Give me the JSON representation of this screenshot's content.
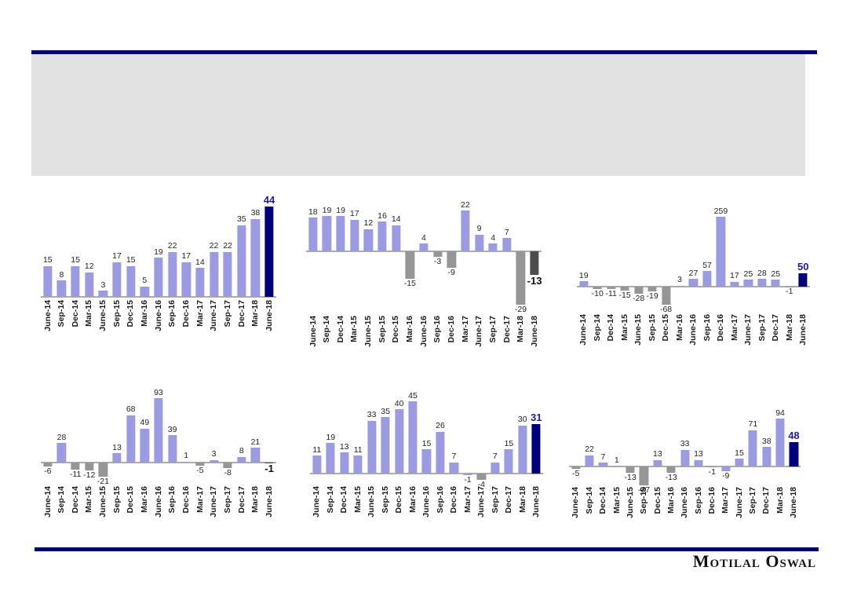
{
  "page": {
    "brand": "Motilal Oswal",
    "colors": {
      "bar_light": "#9B9BE4",
      "bar_navy": "#00007F",
      "bar_gray": "#969696",
      "bar_darkgray": "#4D4D4D",
      "accent_rule": "#00007F",
      "header_band": "#E2E2E2",
      "axis_line": "#ACACAC",
      "label_default": "#242424",
      "label_highlight_navy": "#1C1CA8",
      "label_highlight_black": "#101010"
    }
  },
  "header": {
    "band_color": "#E2E2E2",
    "title_text": ""
  },
  "footer": {
    "logo_text": "Motilal Oswal"
  },
  "chart_data": [
    {
      "type": "bar",
      "name": "top-left",
      "title": "",
      "xlabel": "",
      "ylabel": "",
      "ylim": [
        0,
        44
      ],
      "grid": false,
      "legend": false,
      "categories": [
        "June-14",
        "Sep-14",
        "Dec-14",
        "Mar-15",
        "June-15",
        "Sep-15",
        "Dec-15",
        "Mar-16",
        "June-16",
        "Sep-16",
        "Dec-16",
        "Mar-17",
        "June-17",
        "Sep-17",
        "Dec-17",
        "Mar-18",
        "June-18"
      ],
      "values": [
        15,
        8,
        15,
        12,
        3,
        17,
        15,
        5,
        19,
        22,
        17,
        14,
        22,
        22,
        35,
        38,
        44
      ],
      "bar_styles": [
        "light",
        "light",
        "light",
        "light",
        "light",
        "light",
        "light",
        "light",
        "light",
        "light",
        "light",
        "light",
        "light",
        "light",
        "light",
        "light",
        "navy"
      ],
      "highlight_index": 16,
      "highlight_label": "44",
      "highlight_label_color": "navy"
    },
    {
      "type": "bar",
      "name": "top-middle",
      "title": "",
      "xlabel": "",
      "ylabel": "",
      "ylim": [
        -29,
        22
      ],
      "grid": false,
      "legend": false,
      "categories": [
        "June-14",
        "Sep-14",
        "Dec-14",
        "Mar-15",
        "June-15",
        "Sep-15",
        "Dec-15",
        "Mar-16",
        "June-16",
        "Sep-16",
        "Dec-16",
        "Mar-17",
        "June-17",
        "Sep-17",
        "Dec-17",
        "Mar-18",
        "June-18"
      ],
      "values": [
        18,
        19,
        19,
        17,
        12,
        16,
        14,
        -15,
        4,
        -3,
        -9,
        22,
        9,
        4,
        7,
        -29,
        -13
      ],
      "bar_styles": [
        "light",
        "light",
        "light",
        "light",
        "light",
        "light",
        "light",
        "gray",
        "light",
        "gray",
        "gray",
        "light",
        "light",
        "light",
        "light",
        "gray",
        "darkgray"
      ],
      "highlight_index": 16,
      "highlight_label": "-13",
      "highlight_label_color": "black"
    },
    {
      "type": "bar",
      "name": "top-right",
      "title": "",
      "xlabel": "",
      "ylabel": "",
      "ylim": [
        -68,
        259
      ],
      "grid": false,
      "legend": false,
      "categories": [
        "June-14",
        "Sep-14",
        "Dec-14",
        "Mar-15",
        "June-15",
        "Sep-15",
        "Dec-15",
        "Mar-16",
        "June-16",
        "Sep-16",
        "Dec-16",
        "Mar-17",
        "June-17",
        "Sep-17",
        "Dec-17",
        "Mar-18",
        "June-18"
      ],
      "values": [
        19,
        -10,
        -11,
        -15,
        -28,
        -19,
        -68,
        3,
        27,
        57,
        259,
        17,
        25,
        28,
        25,
        -1,
        50
      ],
      "bar_styles": [
        "light",
        "gray",
        "gray",
        "gray",
        "gray",
        "gray",
        "gray",
        "light",
        "light",
        "light",
        "light",
        "light",
        "light",
        "light",
        "light",
        "gray",
        "navy"
      ],
      "highlight_index": 16,
      "highlight_label": "50",
      "highlight_label_color": "navy"
    },
    {
      "type": "bar",
      "name": "bottom-left",
      "title": "",
      "xlabel": "",
      "ylabel": "",
      "ylim": [
        -21,
        93
      ],
      "grid": false,
      "legend": false,
      "categories": [
        "June-14",
        "Sep-14",
        "Dec-14",
        "Mar-15",
        "June-15",
        "Sep-15",
        "Dec-15",
        "Mar-16",
        "June-16",
        "Sep-16",
        "Dec-16",
        "Mar-17",
        "June-17",
        "Sep-17",
        "Dec-17",
        "Mar-18",
        "June-18"
      ],
      "values": [
        -6,
        28,
        -11,
        -12,
        -21,
        13,
        68,
        49,
        93,
        39,
        1,
        -5,
        3,
        -8,
        8,
        21,
        -1
      ],
      "bar_styles": [
        "gray",
        "light",
        "gray",
        "gray",
        "gray",
        "light",
        "light",
        "light",
        "light",
        "light",
        "light",
        "gray",
        "light",
        "gray",
        "light",
        "light",
        "darkgray"
      ],
      "highlight_index": 16,
      "highlight_label": "-1",
      "highlight_label_color": "black"
    },
    {
      "type": "bar",
      "name": "bottom-middle",
      "title": "",
      "xlabel": "",
      "ylabel": "",
      "ylim": [
        -4,
        45
      ],
      "grid": false,
      "legend": false,
      "categories": [
        "June-14",
        "Sep-14",
        "Dec-14",
        "Mar-15",
        "June-15",
        "Sep-15",
        "Dec-15",
        "Mar-16",
        "June-16",
        "Sep-16",
        "Dec-16",
        "Mar-17",
        "June-17",
        "Sep-17",
        "Dec-17",
        "Mar-18",
        "June-18"
      ],
      "values": [
        11,
        19,
        13,
        11,
        33,
        35,
        40,
        45,
        15,
        26,
        7,
        -1,
        -4,
        7,
        15,
        30,
        31
      ],
      "bar_styles": [
        "light",
        "light",
        "light",
        "light",
        "light",
        "light",
        "light",
        "light",
        "light",
        "light",
        "light",
        "light",
        "gray",
        "light",
        "light",
        "light",
        "navy"
      ],
      "highlight_index": 16,
      "highlight_label": "31",
      "highlight_label_color": "navy"
    },
    {
      "type": "bar",
      "name": "bottom-right",
      "title": "",
      "xlabel": "",
      "ylabel": "",
      "ylim": [
        -37,
        94
      ],
      "grid": false,
      "legend": false,
      "categories": [
        "June-14",
        "Sep-14",
        "Dec-14",
        "Mar-15",
        "June-15",
        "Sep-15",
        "Dec-15",
        "Mar-16",
        "June-16",
        "Sep-16",
        "Dec-16",
        "Mar-17",
        "June-17",
        "Sep-17",
        "Dec-17",
        "Mar-18",
        "June-18"
      ],
      "values": [
        -5,
        22,
        7,
        1,
        -13,
        -37,
        13,
        -13,
        33,
        13,
        -1,
        -9,
        15,
        71,
        38,
        94,
        48
      ],
      "bar_styles": [
        "gray",
        "light",
        "light",
        "light",
        "gray",
        "gray",
        "light",
        "gray",
        "light",
        "light",
        "gray",
        "light",
        "light",
        "light",
        "light",
        "light",
        "navy"
      ],
      "highlight_index": 16,
      "highlight_label": "48",
      "highlight_label_color": "navy"
    }
  ]
}
